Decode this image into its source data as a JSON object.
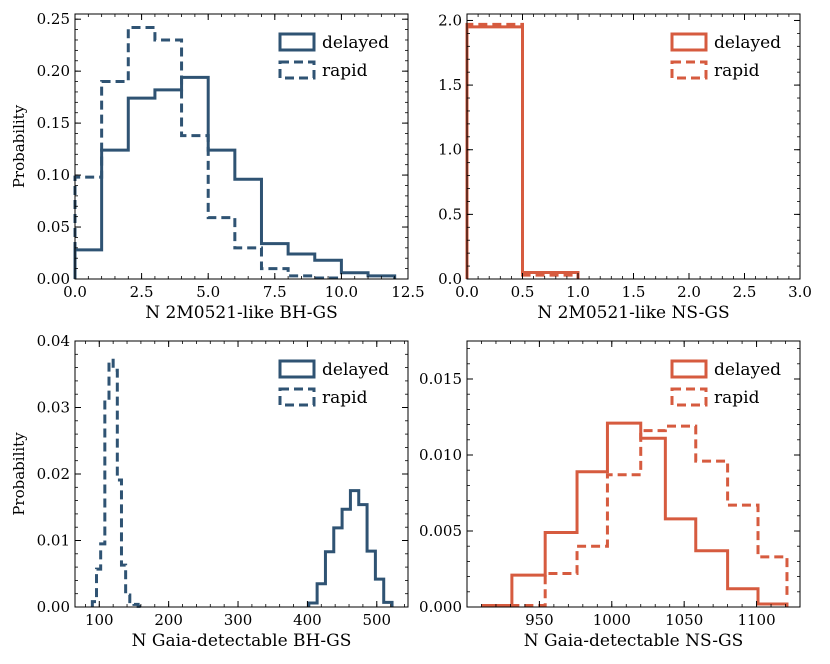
{
  "colors": {
    "bh": "#2f5373",
    "ns": "#d65b3f"
  },
  "chart_data": [
    {
      "id": "bh-2m",
      "type": "histogram",
      "xlabel": "N 2M0521-like BH-GS",
      "ylabel": "Probability",
      "xlim": [
        0,
        12.5
      ],
      "ylim": [
        0,
        0.255
      ],
      "xticks": [
        0,
        2.5,
        5,
        7.5,
        10,
        12.5
      ],
      "xtick_labels": [
        "0.0",
        "2.5",
        "5.0",
        "7.5",
        "10.0",
        "12.5"
      ],
      "yticks": [
        0,
        0.05,
        0.1,
        0.15,
        0.2,
        0.25
      ],
      "ytick_labels": [
        "0.00",
        "0.05",
        "0.10",
        "0.15",
        "0.20",
        "0.25"
      ],
      "color_key": "bh",
      "legend": [
        "delayed",
        "rapid"
      ],
      "series": [
        {
          "name": "delayed",
          "style": "solid",
          "edges": [
            0,
            1,
            2,
            3,
            4,
            5,
            6,
            7,
            8,
            9,
            10,
            11,
            12
          ],
          "values": [
            0.028,
            0.124,
            0.174,
            0.182,
            0.194,
            0.124,
            0.096,
            0.034,
            0.024,
            0.018,
            0.006,
            0.003
          ]
        },
        {
          "name": "rapid",
          "style": "dashed",
          "edges": [
            0,
            1,
            2,
            3,
            4,
            5,
            6,
            7,
            8,
            9,
            10
          ],
          "values": [
            0.098,
            0.19,
            0.242,
            0.23,
            0.138,
            0.059,
            0.03,
            0.01,
            0.003,
            0.001
          ]
        }
      ]
    },
    {
      "id": "ns-2m",
      "type": "histogram",
      "xlabel": "N 2M0521-like NS-GS",
      "ylabel": "",
      "xlim": [
        0,
        3.0
      ],
      "ylim": [
        0,
        2.05
      ],
      "xticks": [
        0,
        0.5,
        1,
        1.5,
        2,
        2.5,
        3
      ],
      "xtick_labels": [
        "0.0",
        "0.5",
        "1.0",
        "1.5",
        "2.0",
        "2.5",
        "3.0"
      ],
      "yticks": [
        0,
        0.5,
        1,
        1.5,
        2
      ],
      "ytick_labels": [
        "0.0",
        "0.5",
        "1.0",
        "1.5",
        "2.0"
      ],
      "color_key": "ns",
      "legend": [
        "delayed",
        "rapid"
      ],
      "series": [
        {
          "name": "delayed",
          "style": "solid",
          "edges": [
            0,
            0.5,
            1.0
          ],
          "values": [
            1.95,
            0.05
          ]
        },
        {
          "name": "rapid",
          "style": "dashed",
          "edges": [
            0,
            0.5,
            1.0
          ],
          "values": [
            1.97,
            0.03
          ]
        }
      ]
    },
    {
      "id": "bh-gaia",
      "type": "histogram",
      "xlabel": "N Gaia-detectable BH-GS",
      "ylabel": "Probability",
      "xlim": [
        65,
        545
      ],
      "ylim": [
        0,
        0.04
      ],
      "xticks": [
        100,
        200,
        300,
        400,
        500
      ],
      "xtick_labels": [
        "100",
        "200",
        "300",
        "400",
        "500"
      ],
      "yticks": [
        0,
        0.01,
        0.02,
        0.03,
        0.04
      ],
      "ytick_labels": [
        "0.00",
        "0.01",
        "0.02",
        "0.03",
        "0.04"
      ],
      "color_key": "bh",
      "legend": [
        "delayed",
        "rapid"
      ],
      "series": [
        {
          "name": "delayed",
          "style": "solid",
          "edges": [
            402,
            414,
            426,
            438,
            450,
            462,
            474,
            486,
            498,
            510,
            522
          ],
          "values": [
            0.0006,
            0.0035,
            0.0083,
            0.0119,
            0.0147,
            0.0175,
            0.0154,
            0.0084,
            0.0042,
            0.0007
          ]
        },
        {
          "name": "rapid",
          "style": "dashed",
          "edges": [
            90,
            96,
            102,
            108,
            114,
            120,
            126,
            132,
            138,
            144,
            150,
            156,
            162
          ],
          "values": [
            0.0008,
            0.0057,
            0.0095,
            0.0314,
            0.0371,
            0.0356,
            0.0191,
            0.0063,
            0.0018,
            0.0008,
            0.0004,
            0.0001
          ]
        }
      ]
    },
    {
      "id": "ns-gaia",
      "type": "histogram",
      "xlabel": "N Gaia-detectable NS-GS",
      "ylabel": "",
      "xlim": [
        900,
        1130
      ],
      "ylim": [
        0,
        0.0175
      ],
      "xticks": [
        950,
        1000,
        1050,
        1100
      ],
      "xtick_labels": [
        "950",
        "1000",
        "1050",
        "1100"
      ],
      "yticks": [
        0,
        0.005,
        0.01,
        0.015
      ],
      "ytick_labels": [
        "0.000",
        "0.005",
        "0.010",
        "0.015"
      ],
      "color_key": "ns",
      "legend": [
        "delayed",
        "rapid"
      ],
      "series": [
        {
          "name": "delayed",
          "style": "solid",
          "edges": [
            911,
            931,
            954,
            976,
            997,
            1020,
            1037,
            1058,
            1080,
            1101,
            1121
          ],
          "values": [
            0.0001,
            0.0021,
            0.0049,
            0.0089,
            0.0121,
            0.0111,
            0.0058,
            0.0037,
            0.0012,
            0.0002
          ]
        },
        {
          "name": "rapid",
          "style": "dashed",
          "edges": [
            931,
            954,
            976,
            997,
            1020,
            1037,
            1058,
            1080,
            1101,
            1121
          ],
          "values": [
            0.0001,
            0.0022,
            0.004,
            0.0087,
            0.0116,
            0.0119,
            0.0096,
            0.0067,
            0.0033,
            0.0008
          ]
        }
      ]
    }
  ]
}
